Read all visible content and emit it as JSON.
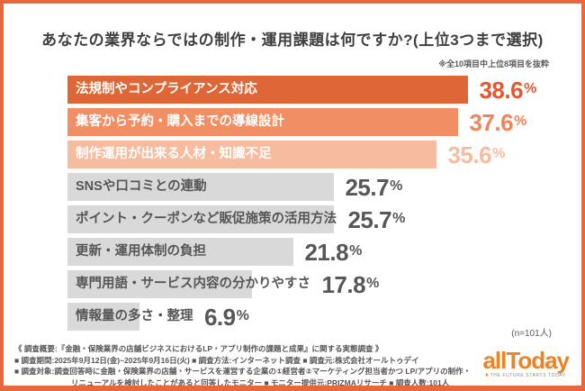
{
  "header": {
    "title": "あなたの業界ならではの制作・運用課題は何ですか?(上位3つまで選択)",
    "note": "※全10項目中上位8項目を抜粋"
  },
  "chart_data": {
    "type": "bar",
    "orientation": "horizontal",
    "title": "あなたの業界ならではの制作・運用課題は何ですか?(上位3つまで選択)",
    "unit": "%",
    "n_label": "(n=101人)",
    "xlim": [
      0,
      40
    ],
    "categories": [
      "法規制やコンプライアンス対応",
      "集客から予約・購入までの導線設計",
      "制作運用が出来る人材・知識不足",
      "SNSや口コミとの連動",
      "ポイント・クーポンなど販促施策の活用方法",
      "更新・運用体制の負担",
      "専門用語・サービス内容の分かりやすさ",
      "情報量の多さ・整理"
    ],
    "values": [
      38.6,
      37.6,
      35.6,
      25.7,
      25.7,
      21.8,
      17.8,
      6.9
    ],
    "items": [
      {
        "label": "法規制やコンプライアンス対応",
        "value": 38.6,
        "value_display": "38.6",
        "bar_color": "#df6737",
        "label_color": "#ffffff",
        "pct_color": "#e4582e"
      },
      {
        "label": "集客から予約・購入までの導線設計",
        "value": 37.6,
        "value_display": "37.6",
        "bar_color": "#f28e63",
        "label_color": "#ffffff",
        "pct_color": "#f2845c"
      },
      {
        "label": "制作運用が出来る人材・知識不足",
        "value": 35.6,
        "value_display": "35.6",
        "bar_color": "#f7bb9f",
        "label_color": "#ffffff",
        "pct_color": "#f8bb9e"
      },
      {
        "label": "SNSや口コミとの連動",
        "value": 25.7,
        "value_display": "25.7",
        "bar_color": "#d9d9d9",
        "label_color": "#565656",
        "pct_color": "#575757"
      },
      {
        "label": "ポイント・クーポンなど販促施策の活用方法",
        "value": 25.7,
        "value_display": "25.7",
        "bar_color": "#d9d9d9",
        "label_color": "#565656",
        "pct_color": "#575757"
      },
      {
        "label": "更新・運用体制の負担",
        "value": 21.8,
        "value_display": "21.8",
        "bar_color": "#d9d9d9",
        "label_color": "#565656",
        "pct_color": "#575757"
      },
      {
        "label": "専門用語・サービス内容の分かりやすさ",
        "value": 17.8,
        "value_display": "17.8",
        "bar_color": "#d9d9d9",
        "label_color": "#565656",
        "pct_color": "#575757"
      },
      {
        "label": "情報量の多さ・整理",
        "value": 6.9,
        "value_display": "6.9",
        "bar_color": "#d9d9d9",
        "label_color": "#565656",
        "pct_color": "#575757"
      }
    ]
  },
  "footer": {
    "lines": [
      "《 調査概要:『金融・保険業界の店舗ビジネスにおけるLP・アプリ制作の課題と成果』に関する実態調査 》",
      "■ 調査期間:2025年9月12日(金)~2025年9月16日(火)  ■ 調査方法:インターネット調査  ■ 調査元:株式会社オールトゥデイ",
      "■ 調査対象:調査回答時に金融・保険業界の店舗・サービスを運営する企業の①経営者②マーケティング担当者かつ LP/アプリの制作・",
      "リニューアルを検討したことがあると回答したモニター  ■ モニター提供元:PRIZMAリサーチ  ■ 調査人数:101人"
    ]
  },
  "logo": {
    "name": "allToday",
    "tagline": "THE FUTURE STARTS TODAY"
  },
  "colors": {
    "frame": "#e8673c",
    "logo": "#ef8222"
  }
}
